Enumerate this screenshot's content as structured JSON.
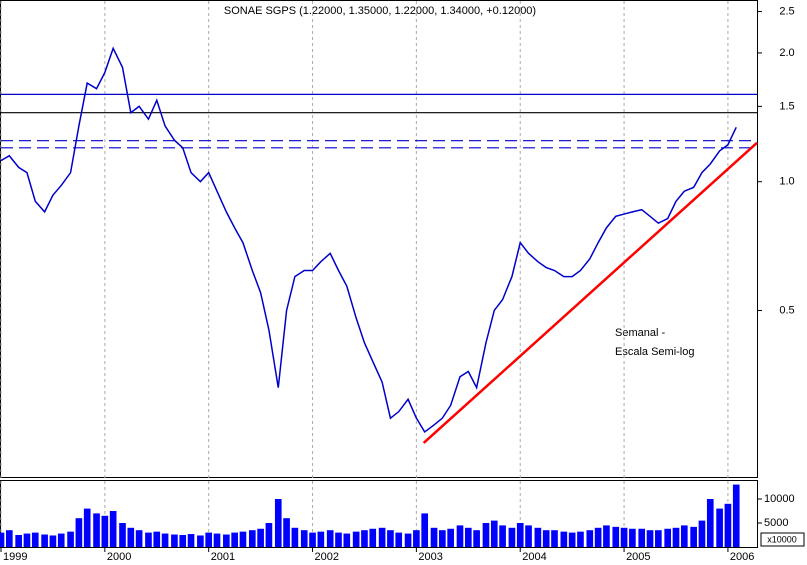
{
  "chart_data": {
    "type": "line",
    "title": "SONAE SGPS (1.22000, 1.35000, 1.22000, 1.34000, +0.12000)",
    "annotation": [
      "Semanal -",
      "Escala Semi-log"
    ],
    "log_scale": true,
    "grid": true,
    "x": [
      1999.0,
      1999.08,
      1999.17,
      1999.25,
      1999.33,
      1999.42,
      1999.5,
      1999.58,
      1999.67,
      1999.75,
      1999.83,
      1999.92,
      2000.0,
      2000.08,
      2000.17,
      2000.25,
      2000.33,
      2000.42,
      2000.5,
      2000.58,
      2000.67,
      2000.75,
      2000.83,
      2000.92,
      2001.0,
      2001.08,
      2001.17,
      2001.25,
      2001.33,
      2001.42,
      2001.5,
      2001.58,
      2001.67,
      2001.75,
      2001.83,
      2001.92,
      2002.0,
      2002.08,
      2002.17,
      2002.25,
      2002.33,
      2002.42,
      2002.5,
      2002.58,
      2002.67,
      2002.75,
      2002.83,
      2002.92,
      2003.0,
      2003.08,
      2003.17,
      2003.25,
      2003.33,
      2003.42,
      2003.5,
      2003.58,
      2003.67,
      2003.75,
      2003.83,
      2003.92,
      2004.0,
      2004.08,
      2004.17,
      2004.25,
      2004.33,
      2004.42,
      2004.5,
      2004.58,
      2004.67,
      2004.75,
      2004.83,
      2004.92,
      2005.0,
      2005.08,
      2005.17,
      2005.25,
      2005.33,
      2005.42,
      2005.5,
      2005.58,
      2005.67,
      2005.75,
      2005.83,
      2005.92,
      2006.0,
      2006.08
    ],
    "series": [
      {
        "color": "#0000cc",
        "values": [
          1.12,
          1.15,
          1.08,
          1.05,
          0.9,
          0.85,
          0.93,
          0.98,
          1.05,
          1.35,
          1.7,
          1.65,
          1.8,
          2.05,
          1.85,
          1.45,
          1.5,
          1.4,
          1.55,
          1.35,
          1.25,
          1.2,
          1.05,
          1.0,
          1.05,
          0.95,
          0.85,
          0.78,
          0.72,
          0.62,
          0.55,
          0.45,
          0.33,
          0.5,
          0.6,
          0.62,
          0.62,
          0.65,
          0.68,
          0.62,
          0.57,
          0.48,
          0.42,
          0.38,
          0.34,
          0.28,
          0.29,
          0.31,
          0.28,
          0.26,
          0.27,
          0.28,
          0.3,
          0.35,
          0.36,
          0.33,
          0.42,
          0.5,
          0.53,
          0.6,
          0.72,
          0.68,
          0.65,
          0.63,
          0.62,
          0.6,
          0.6,
          0.62,
          0.66,
          0.72,
          0.78,
          0.83,
          0.84,
          0.85,
          0.86,
          0.83,
          0.8,
          0.82,
          0.9,
          0.95,
          0.97,
          1.05,
          1.1,
          1.18,
          1.22,
          1.34
        ]
      }
    ],
    "volume": {
      "color": "#0000ff",
      "values": [
        3000,
        3500,
        2500,
        2800,
        3000,
        2600,
        2400,
        2800,
        3200,
        6000,
        8000,
        7000,
        6500,
        7500,
        5000,
        4000,
        3500,
        3000,
        3200,
        2800,
        2600,
        2500,
        2700,
        2400,
        3000,
        2800,
        2600,
        3000,
        3200,
        3500,
        3800,
        5000,
        10000,
        6000,
        4000,
        3500,
        3000,
        3200,
        3500,
        3000,
        2800,
        3200,
        3500,
        3800,
        4000,
        3500,
        3000,
        2800,
        3500,
        7000,
        4000,
        3500,
        3800,
        4500,
        4000,
        3500,
        5000,
        5500,
        4500,
        4000,
        5000,
        4500,
        4000,
        3500,
        3500,
        3200,
        3000,
        3200,
        3500,
        4000,
        4500,
        4200,
        4000,
        3800,
        3800,
        3500,
        3500,
        3800,
        4000,
        4500,
        4200,
        5500,
        10000,
        8000,
        9000,
        13000
      ],
      "ylim": [
        0,
        13750
      ],
      "yticks": [
        10000,
        5000
      ],
      "unit_label": "x10000"
    },
    "xlim": [
      1999,
      2006.28
    ],
    "xticks": [
      1999,
      2000,
      2001,
      2002,
      2003,
      2004,
      2005,
      2006
    ],
    "ylim": [
      0.204,
      2.645
    ],
    "yticks": [
      2.5,
      {
        "value": 2.0,
        "label": "2.0"
      },
      1.5,
      {
        "value": 1.0,
        "label": "1.0"
      },
      0.5
    ],
    "hlines": [
      {
        "value": 1.6,
        "color": "#0000cc",
        "dashed": false
      },
      {
        "value": 1.45,
        "color": "#000000",
        "dashed": false
      },
      {
        "value": 1.247,
        "color": "#0000cc",
        "dashed": true
      },
      {
        "value": 1.2,
        "color": "#0000cc",
        "dashed": true
      }
    ],
    "trendline": {
      "color": "#ff0000",
      "x": [
        2003.07,
        2006.28
      ],
      "values": [
        0.245,
        1.233
      ]
    }
  }
}
